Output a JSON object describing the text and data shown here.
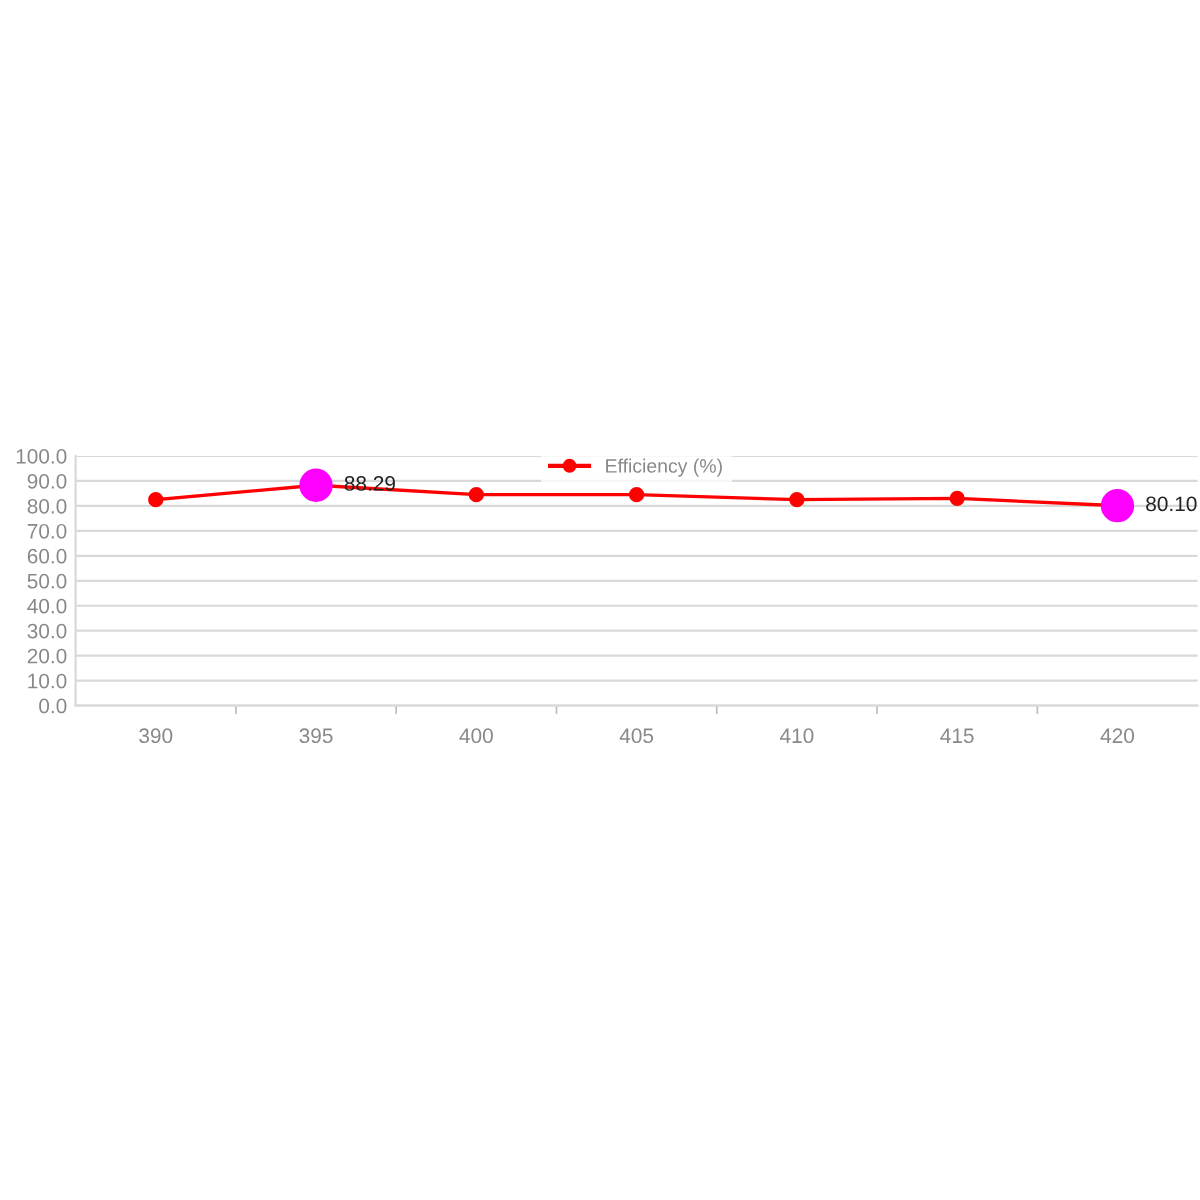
{
  "chart_data": {
    "type": "line",
    "categories": [
      "390",
      "395",
      "400",
      "405",
      "410",
      "415",
      "420"
    ],
    "series": [
      {
        "name": "Efficiency (%)",
        "color": "#ff0000",
        "colors": [
          "#ff0000",
          "#ff00ff",
          "#ff0000",
          "#ff0000",
          "#ff0000",
          "#ff0000",
          "#ff00ff"
        ],
        "values": [
          82.5,
          88.29,
          84.5,
          84.5,
          82.5,
          83,
          80.1
        ],
        "value_labels": [
          null,
          "88.29",
          null,
          null,
          null,
          null,
          "80.10"
        ]
      }
    ],
    "ylim": [
      0,
      100
    ],
    "yticks": [
      {
        "value": 0,
        "label": "0.0"
      },
      {
        "value": 10,
        "label": "10.0"
      },
      {
        "value": 20,
        "label": "20.0"
      },
      {
        "value": 30,
        "label": "30.0"
      },
      {
        "value": 40,
        "label": "40.0"
      },
      {
        "value": 50,
        "label": "50.0"
      },
      {
        "value": 60,
        "label": "60.0"
      },
      {
        "value": 70,
        "label": "70.0"
      },
      {
        "value": 80,
        "label": "80.0"
      },
      {
        "value": 90,
        "label": "90.0"
      },
      {
        "value": 100,
        "label": "100.0"
      }
    ],
    "grid": "y",
    "legend": "top",
    "marker": "circle",
    "line_style": "solid"
  }
}
